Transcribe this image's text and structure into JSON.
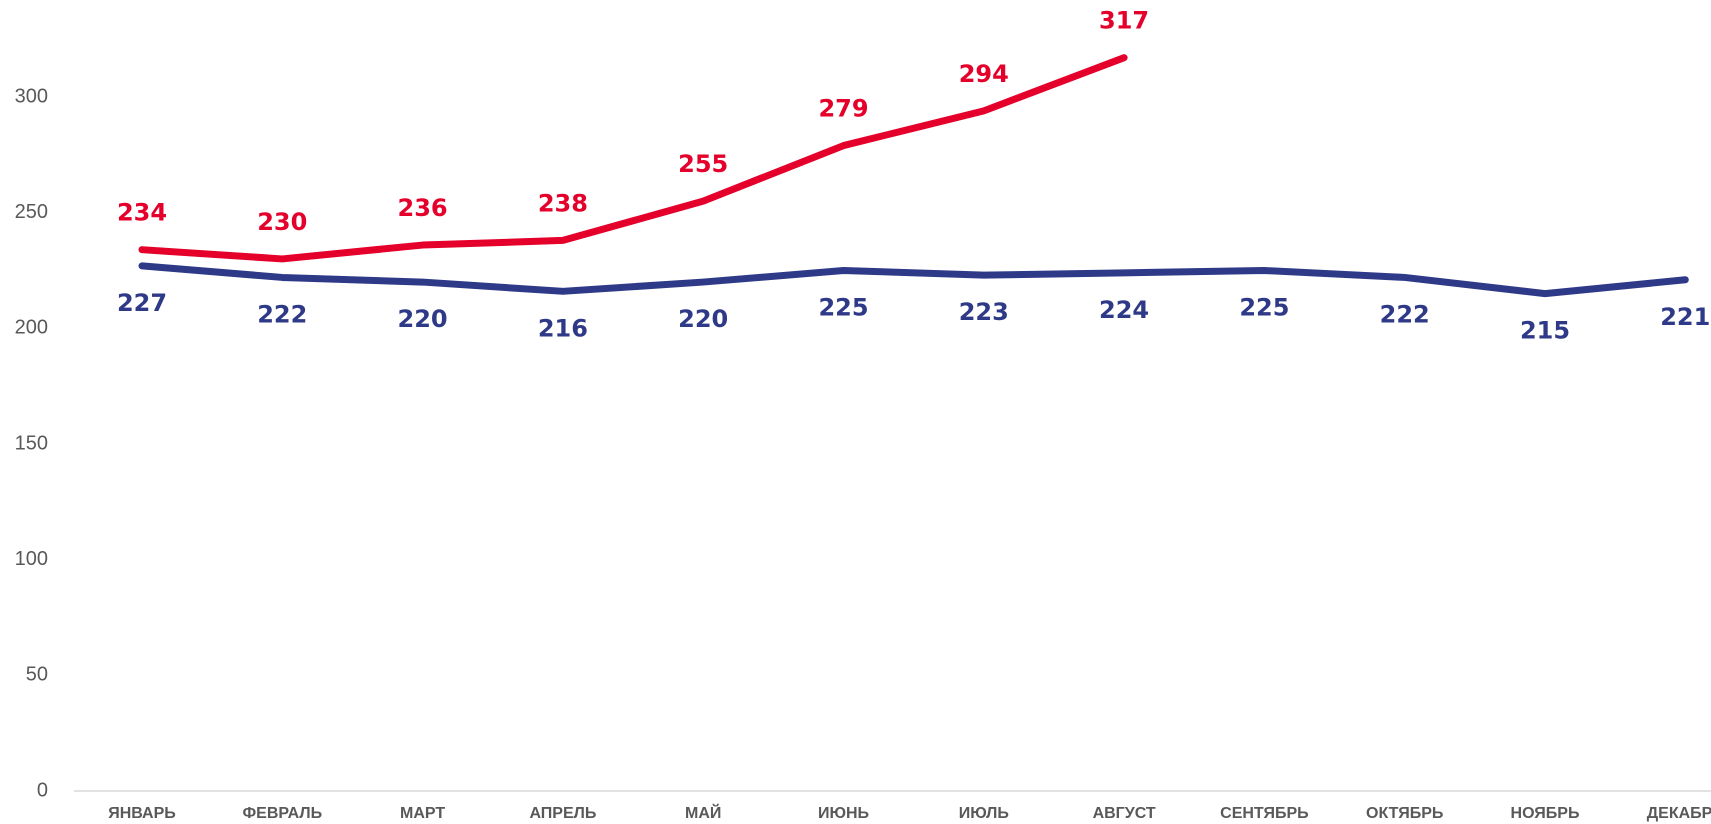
{
  "chart_data": {
    "type": "line",
    "categories": [
      "ЯНВАРЬ",
      "ФЕВРАЛЬ",
      "МАРТ",
      "АПРЕЛЬ",
      "МАЙ",
      "ИЮНЬ",
      "ИЮЛЬ",
      "АВГУСТ",
      "СЕНТЯБРЬ",
      "ОКТЯБРЬ",
      "НОЯБРЬ",
      "ДЕКАБРЬ"
    ],
    "series": [
      {
        "color": "#e4002b",
        "values": [
          234,
          230,
          236,
          238,
          255,
          279,
          294,
          317,
          null,
          null,
          null,
          null
        ]
      },
      {
        "color": "#2e3a87",
        "values": [
          227,
          222,
          220,
          216,
          220,
          225,
          223,
          224,
          225,
          222,
          215,
          221
        ]
      }
    ],
    "ylim": [
      0,
      300
    ],
    "yticks": [
      0,
      50,
      100,
      150,
      200,
      250,
      300
    ]
  }
}
